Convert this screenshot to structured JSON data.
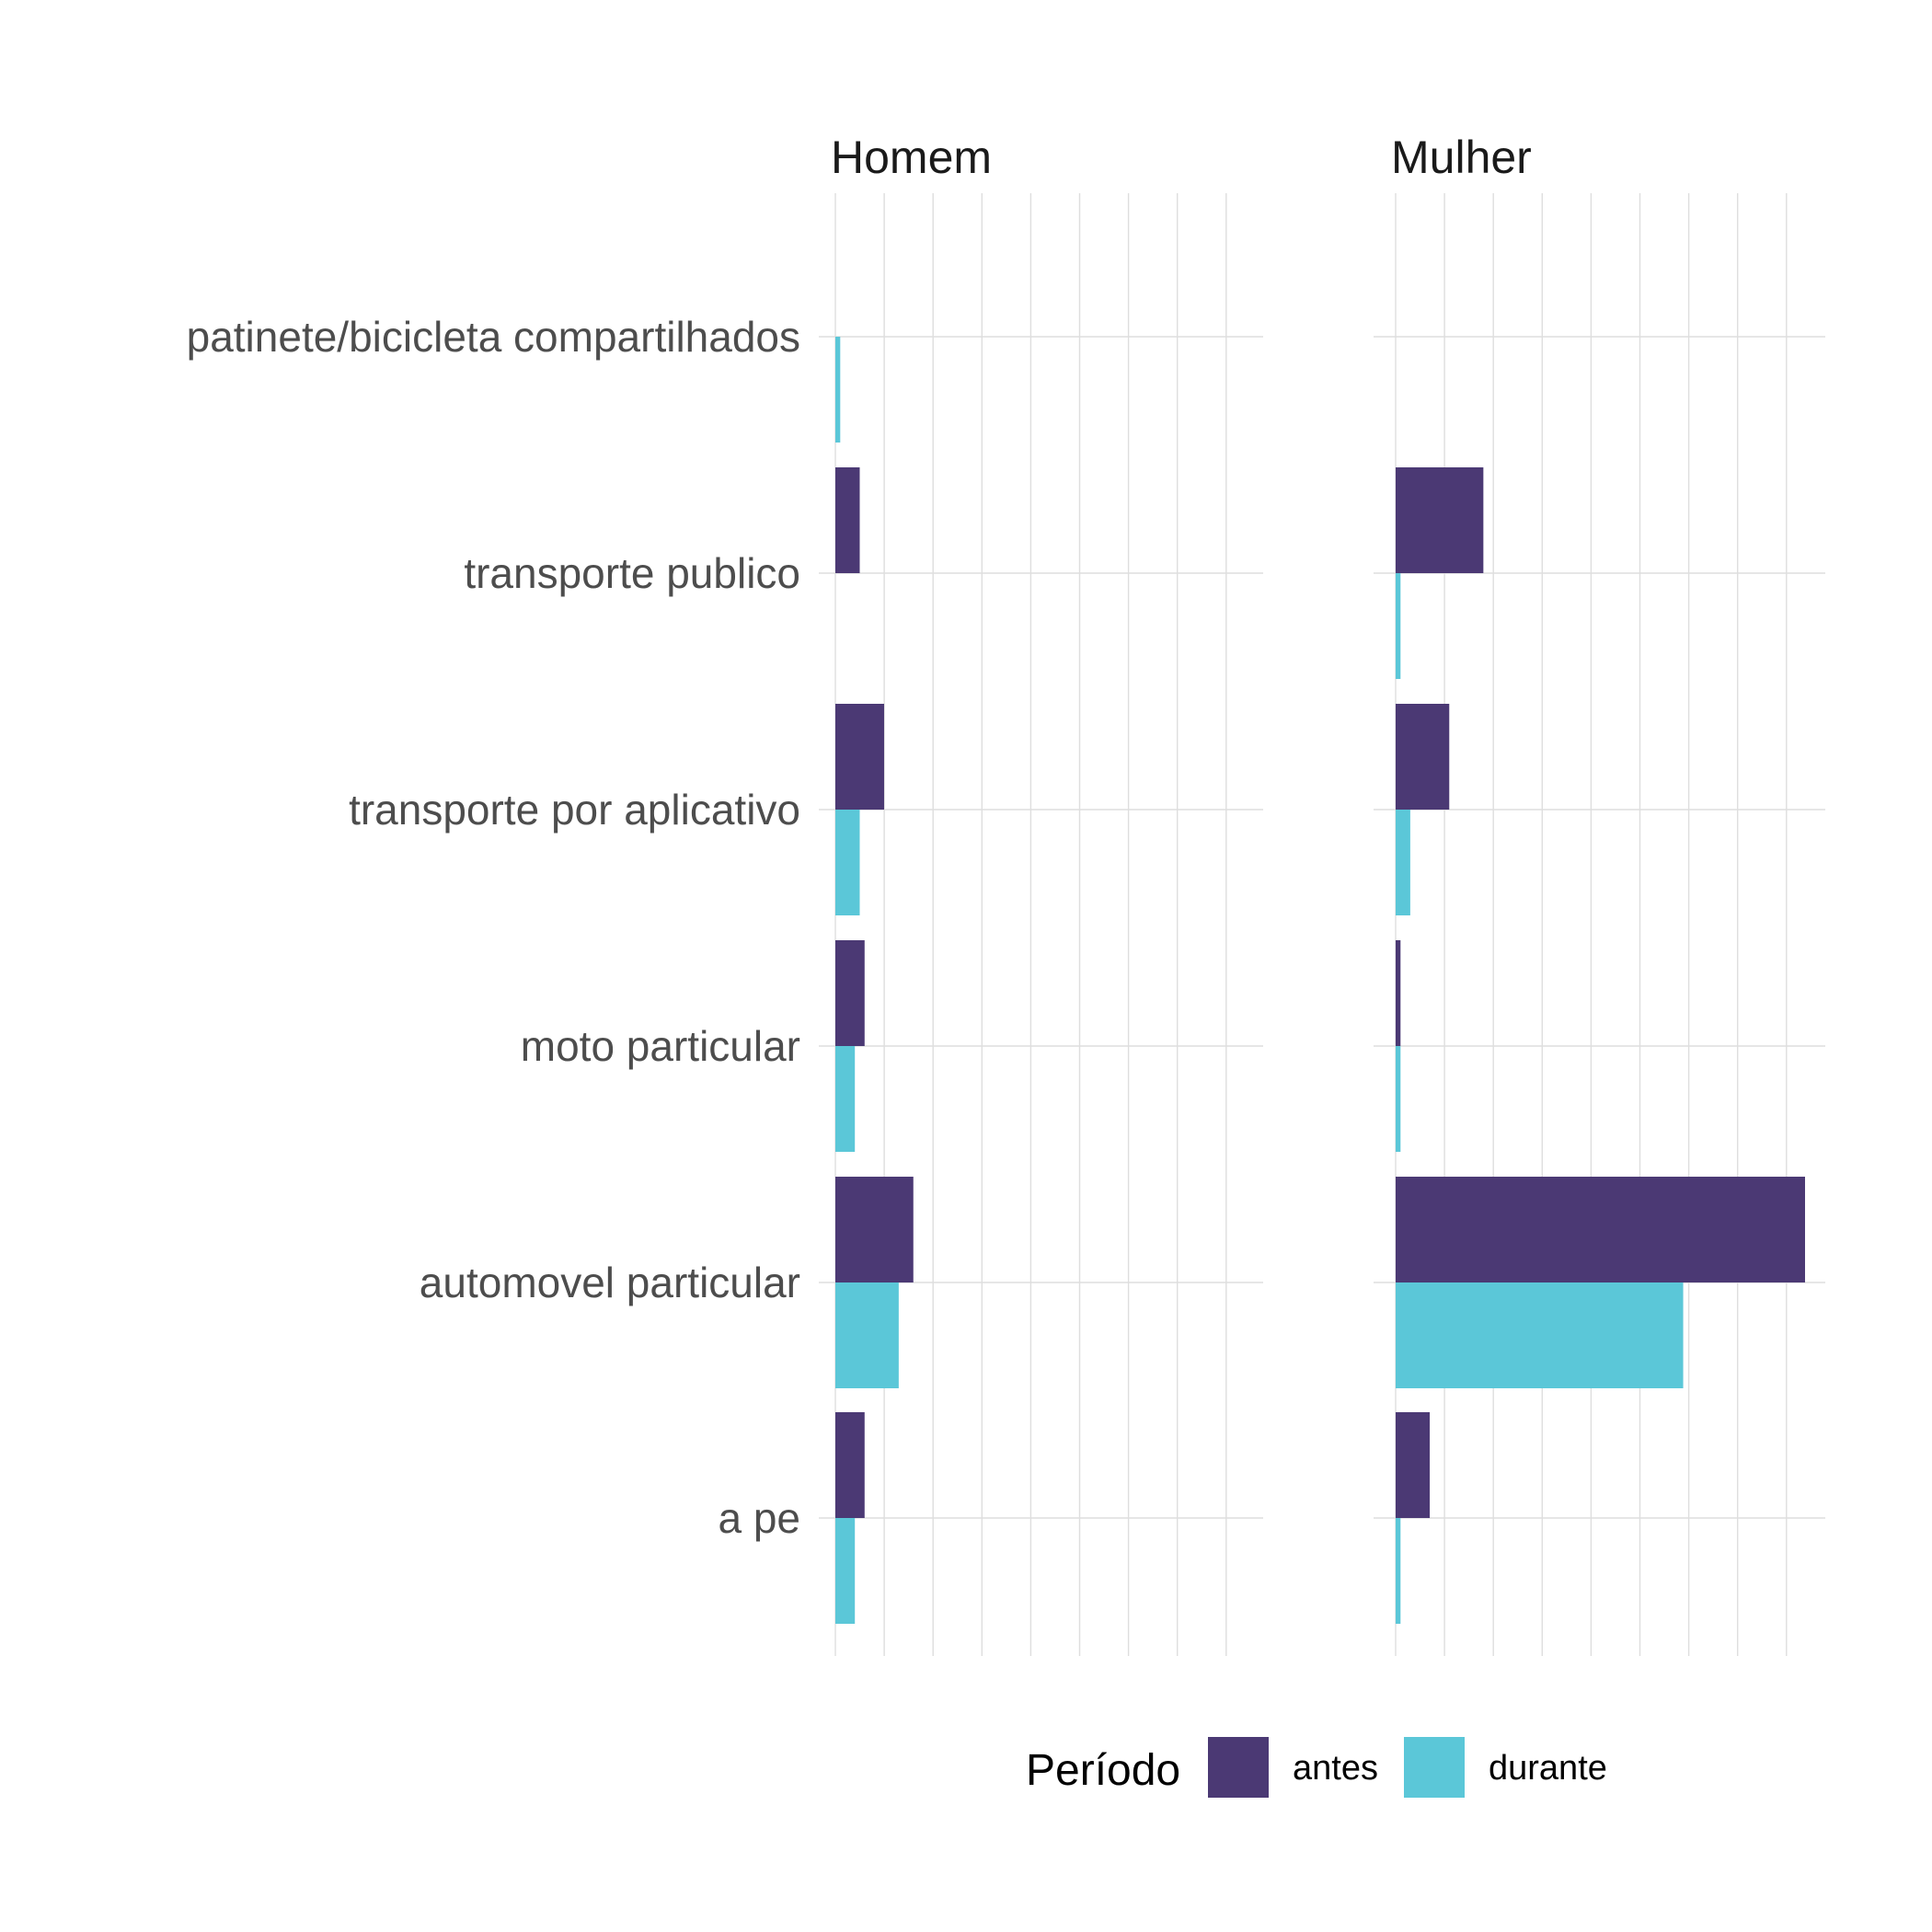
{
  "chart_data": {
    "type": "bar",
    "orientation": "horizontal",
    "categories": [
      "patinete/bicicleta compartilhados",
      "transporte publico",
      "transporte por aplicativo",
      "moto particular",
      "automovel particular",
      "a pe"
    ],
    "facets": [
      {
        "title": "Homem",
        "series": [
          {
            "name": "antes",
            "values": [
              0,
              5,
              10,
              6,
              16,
              6
            ]
          },
          {
            "name": "durante",
            "values": [
              1,
              0,
              5,
              4,
              13,
              4
            ]
          }
        ]
      },
      {
        "title": "Mulher",
        "series": [
          {
            "name": "antes",
            "values": [
              0,
              18,
              11,
              1,
              84,
              7
            ]
          },
          {
            "name": "durante",
            "values": [
              0,
              1,
              3,
              1,
              59,
              1
            ]
          }
        ]
      }
    ],
    "xlim": [
      0,
      88
    ],
    "grid": true,
    "x_tick_labels_shown": false,
    "legend": {
      "title": "Período",
      "position": "bottom",
      "entries": [
        {
          "name": "antes",
          "color": "#4b3974"
        },
        {
          "name": "durante",
          "color": "#5bc7d8"
        }
      ]
    }
  }
}
